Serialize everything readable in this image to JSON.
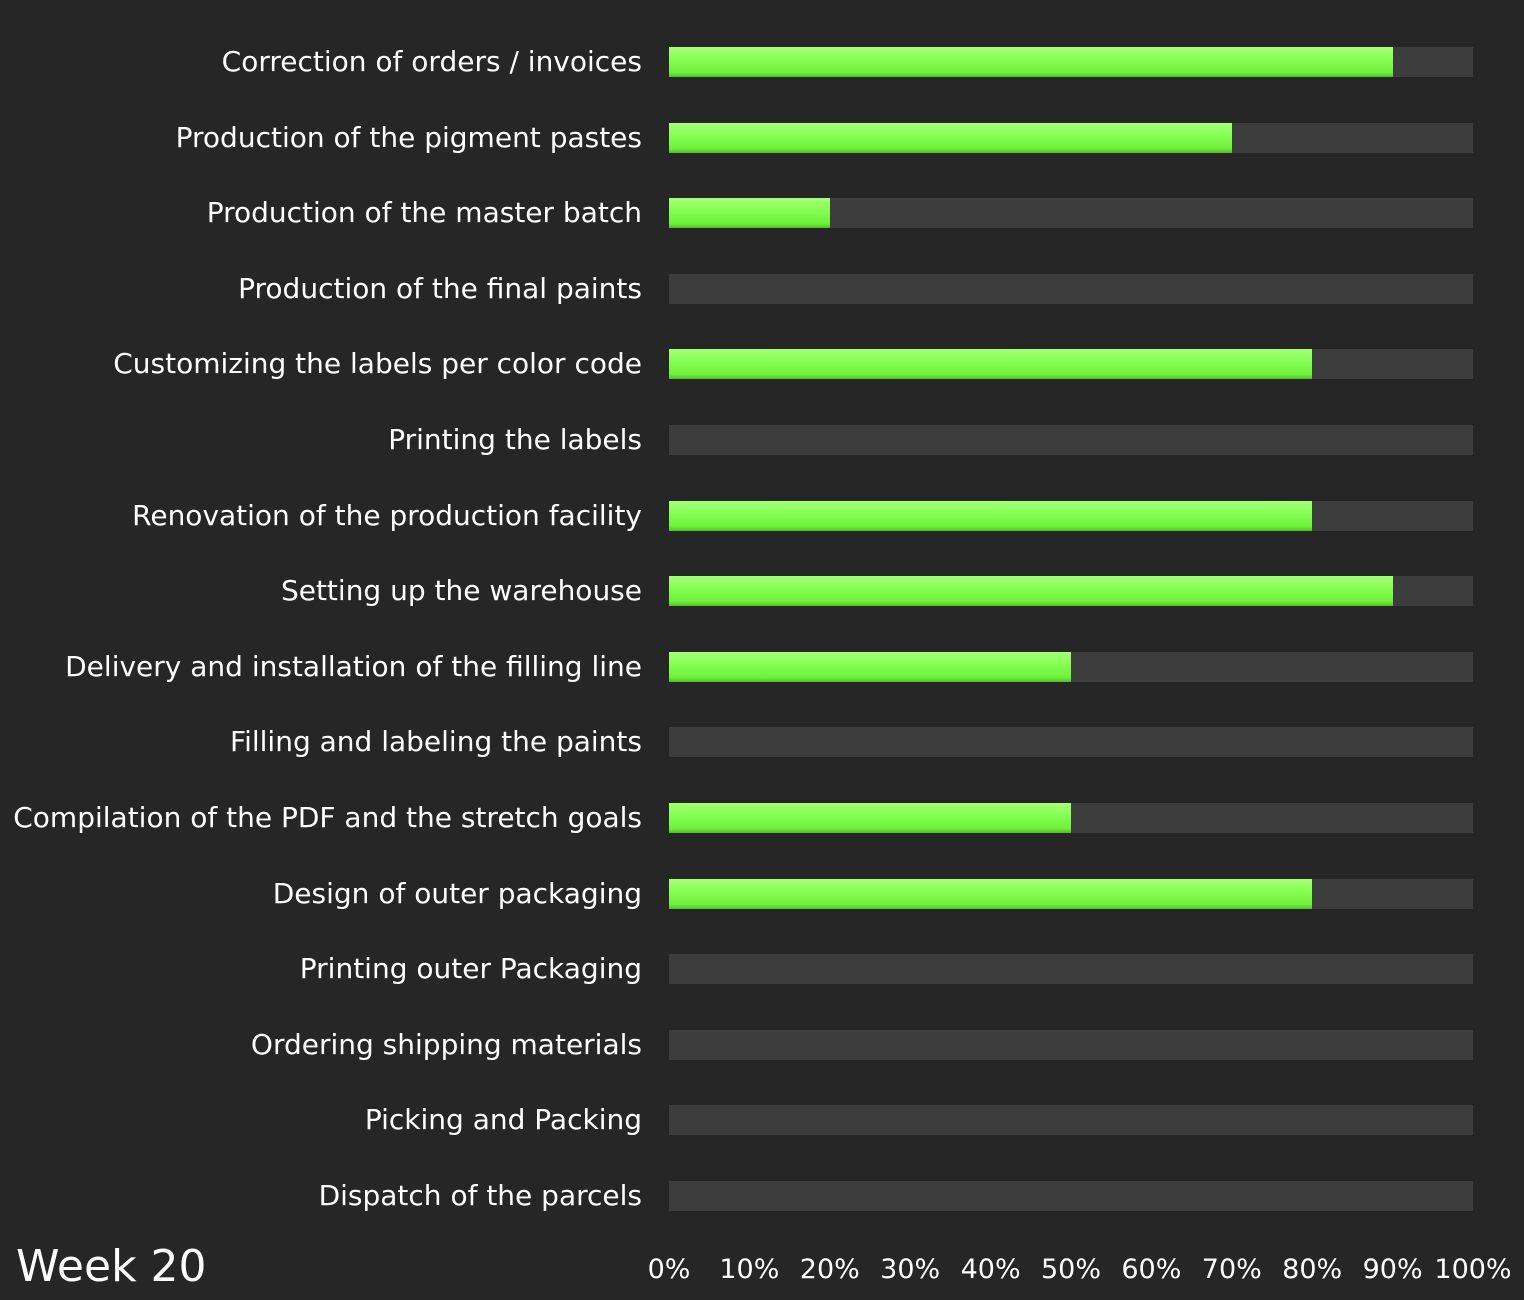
{
  "chart_data": {
    "type": "bar",
    "orientation": "horizontal",
    "categories": [
      "Correction of orders / invoices",
      "Production of the pigment pastes",
      "Production of the master batch",
      "Production of the final paints",
      "Customizing the labels per color code",
      "Printing the labels",
      "Renovation of the production facility",
      "Setting up the warehouse",
      "Delivery and installation of the filling line",
      "Filling and labeling the paints",
      "Compilation of the PDF and the stretch goals",
      "Design of outer packaging",
      "Printing outer Packaging",
      "Ordering shipping materials",
      "Picking and Packing",
      "Dispatch of the parcels"
    ],
    "values": [
      90,
      70,
      20,
      0,
      80,
      0,
      80,
      90,
      50,
      0,
      50,
      80,
      0,
      0,
      0,
      0
    ],
    "xlim": [
      0,
      100
    ],
    "x_ticks": [
      "0%",
      "10%",
      "20%",
      "30%",
      "40%",
      "50%",
      "60%",
      "70%",
      "80%",
      "90%",
      "100%"
    ],
    "grid": false,
    "legend": "none",
    "colors": {
      "background": "#262626",
      "track": "#3d3d3d",
      "fill": "#7dff4f",
      "text": "#ffffff"
    }
  },
  "footer": {
    "week_label": "Week 20"
  }
}
